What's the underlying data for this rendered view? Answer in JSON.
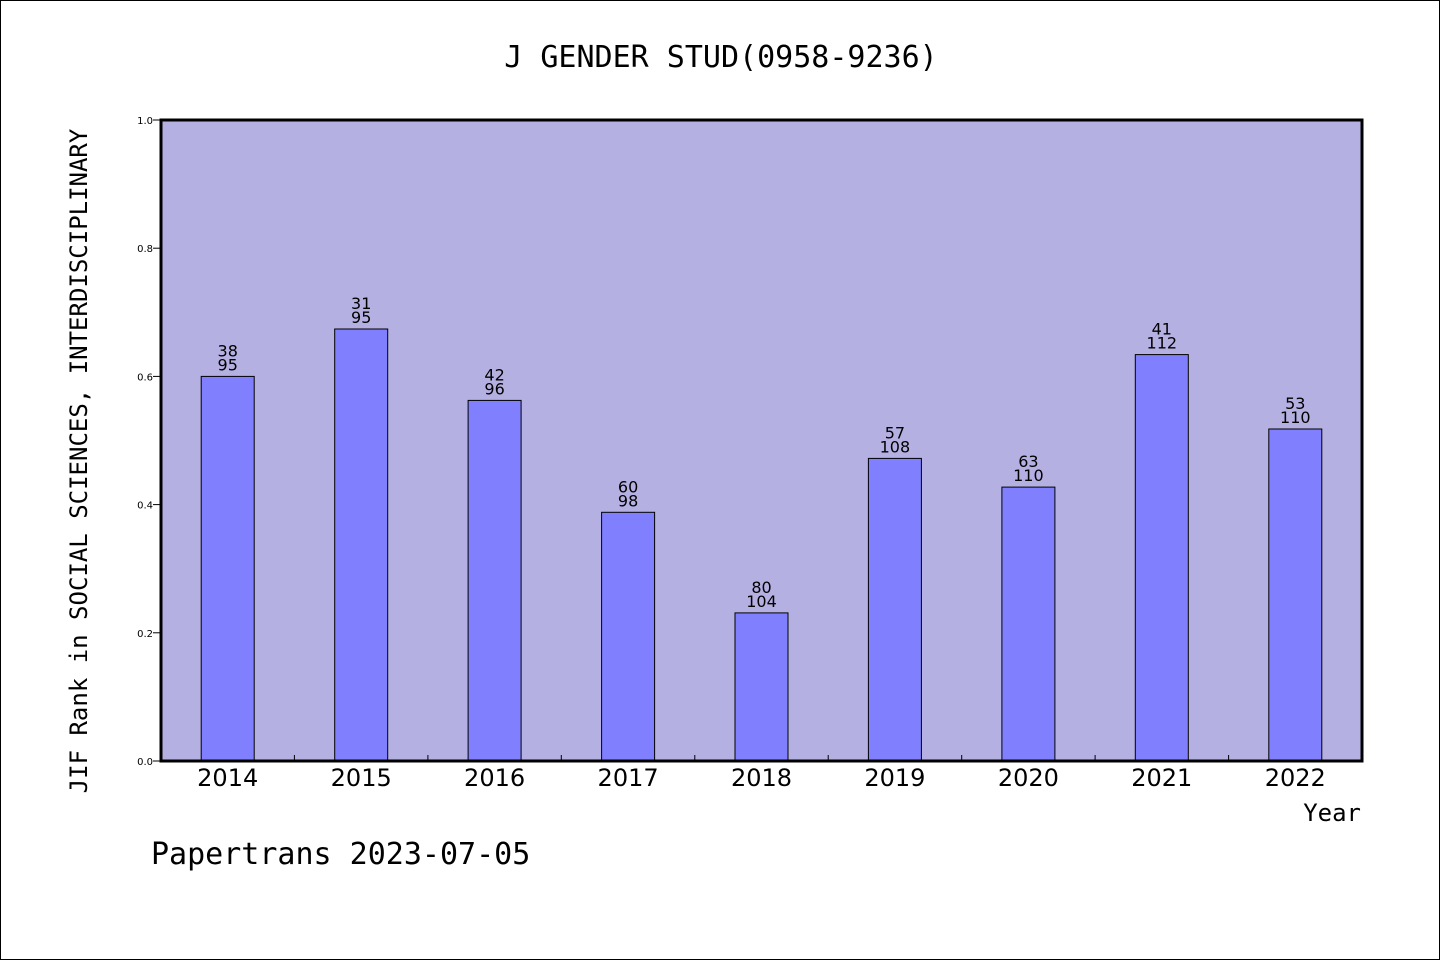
{
  "chart_data": {
    "type": "bar",
    "title": "J GENDER STUD(0958-9236)",
    "ylabel": "JIF Rank in SOCIAL SCIENCES, INTERDISCIPLINARY",
    "xlabel": "Year",
    "ylim": [
      0,
      1.0
    ],
    "yticks": [
      "0.0",
      "0.2",
      "0.4",
      "0.6",
      "0.8",
      "1.0"
    ],
    "grid": false,
    "categories": [
      "2014",
      "2015",
      "2016",
      "2017",
      "2018",
      "2019",
      "2020",
      "2021",
      "2022"
    ],
    "values": [
      0.6,
      0.674,
      0.5625,
      0.388,
      0.231,
      0.472,
      0.4273,
      0.634,
      0.518
    ],
    "labels_top": [
      "38",
      "31",
      "42",
      "60",
      "80",
      "57",
      "63",
      "41",
      "53"
    ],
    "labels_bottom": [
      "95",
      "95",
      "96",
      "98",
      "104",
      "108",
      "110",
      "112",
      "110"
    ],
    "colors": {
      "plot_bg": "#b5b0e2",
      "bar": "#8080ff"
    }
  },
  "footer": "Papertrans 2023-07-05"
}
